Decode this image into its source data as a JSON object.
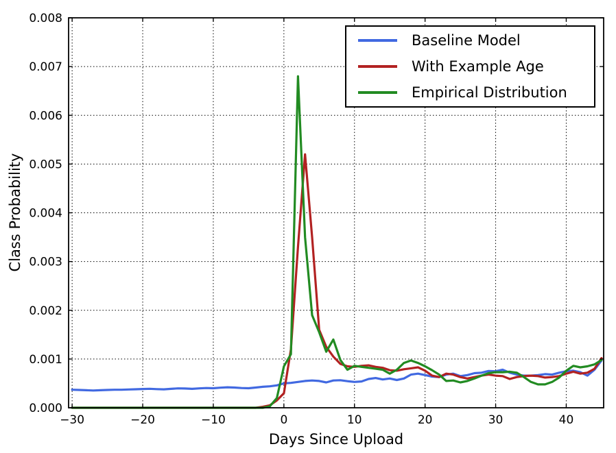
{
  "figure": {
    "background": "#ffffff",
    "axes_color": "#000000",
    "grid_style": "dotted"
  },
  "chart_data": {
    "type": "line",
    "title": "",
    "xlabel": "Days Since Upload",
    "ylabel": "Class Probability",
    "xlim": [
      -30.5,
      45.3
    ],
    "ylim": [
      0.0,
      0.008
    ],
    "grid": "dotted black at all major ticks, both axes",
    "legend": {
      "position": "upper right",
      "border_color": "#000000",
      "background": "#ffffff"
    },
    "xticks": {
      "values": [
        -30,
        -20,
        -10,
        0,
        10,
        20,
        30,
        40
      ],
      "labels": [
        "−30",
        "−20",
        "−10",
        "0",
        "10",
        "20",
        "30",
        "40"
      ]
    },
    "yticks": {
      "values": [
        0.0,
        0.001,
        0.002,
        0.003,
        0.004,
        0.005,
        0.006,
        0.007,
        0.008
      ],
      "labels": [
        "0.000",
        "0.001",
        "0.002",
        "0.003",
        "0.004",
        "0.005",
        "0.006",
        "0.007",
        "0.008"
      ]
    },
    "x": [
      -30,
      -29,
      -28,
      -27,
      -26,
      -25,
      -24,
      -23,
      -22,
      -21,
      -20,
      -19,
      -18,
      -17,
      -16,
      -15,
      -14,
      -13,
      -12,
      -11,
      -10,
      -9,
      -8,
      -7,
      -6,
      -5,
      -4,
      -3,
      -2,
      -1,
      0,
      1,
      2,
      3,
      4,
      5,
      6,
      7,
      8,
      9,
      10,
      11,
      12,
      13,
      14,
      15,
      16,
      17,
      18,
      19,
      20,
      21,
      22,
      23,
      24,
      25,
      26,
      27,
      28,
      29,
      30,
      31,
      32,
      33,
      34,
      35,
      36,
      37,
      38,
      39,
      40,
      41,
      42,
      43,
      44,
      45
    ],
    "series": [
      {
        "name": "Baseline Model",
        "color": "#4169E1",
        "values": [
          0.00037,
          0.000365,
          0.00036,
          0.000355,
          0.00036,
          0.000365,
          0.00037,
          0.00037,
          0.000375,
          0.00038,
          0.000385,
          0.00039,
          0.000382,
          0.000378,
          0.000388,
          0.000398,
          0.000395,
          0.000388,
          0.000398,
          0.000405,
          0.0004,
          0.000412,
          0.00042,
          0.000415,
          0.000405,
          0.0004,
          0.000415,
          0.00043,
          0.00044,
          0.00046,
          0.0005,
          0.00051,
          0.00053,
          0.00055,
          0.00056,
          0.00055,
          0.00052,
          0.00056,
          0.000565,
          0.000545,
          0.00053,
          0.00054,
          0.00059,
          0.00061,
          0.00058,
          0.0006,
          0.00057,
          0.0006,
          0.00068,
          0.0007,
          0.00067,
          0.00064,
          0.00063,
          0.00068,
          0.0007,
          0.00065,
          0.00067,
          0.00071,
          0.00072,
          0.000755,
          0.00075,
          0.00078,
          0.00072,
          0.00068,
          0.00066,
          0.00066,
          0.00067,
          0.00069,
          0.00068,
          0.00072,
          0.00075,
          0.00076,
          0.00073,
          0.00066,
          0.00078,
          0.00097
        ]
      },
      {
        "name": "With Example Age",
        "color": "#B22222",
        "values": [
          0,
          0,
          0,
          0,
          0,
          0,
          0,
          0,
          0,
          0,
          0,
          0,
          0,
          0,
          0,
          0,
          0,
          0,
          0,
          0,
          0,
          0,
          0,
          0,
          0,
          0,
          0,
          2e-05,
          5e-05,
          0.00015,
          0.0003,
          0.0012,
          0.0033,
          0.0052,
          0.0035,
          0.0016,
          0.00125,
          0.00105,
          0.0009,
          0.00085,
          0.00084,
          0.00086,
          0.00087,
          0.00084,
          0.00082,
          0.00077,
          0.00076,
          0.00079,
          0.00081,
          0.00083,
          0.00076,
          0.00066,
          0.00063,
          0.0007,
          0.00068,
          0.00063,
          0.0006,
          0.00063,
          0.00066,
          0.00068,
          0.00066,
          0.00065,
          0.00059,
          0.00063,
          0.00065,
          0.00066,
          0.00065,
          0.00062,
          0.00063,
          0.00065,
          0.0007,
          0.00074,
          0.0007,
          0.00072,
          0.0008,
          0.00102
        ]
      },
      {
        "name": "Empirical Distribution",
        "color": "#228B22",
        "values": [
          0,
          0,
          0,
          0,
          0,
          0,
          0,
          0,
          0,
          0,
          0,
          0,
          0,
          0,
          0,
          0,
          0,
          0,
          0,
          0,
          0,
          0,
          0,
          0,
          0,
          0,
          0,
          0,
          3e-05,
          0.0002,
          0.00085,
          0.0011,
          0.0068,
          0.0035,
          0.0019,
          0.00155,
          0.00115,
          0.0014,
          0.00098,
          0.00078,
          0.00086,
          0.00084,
          0.00082,
          0.0008,
          0.00078,
          0.0007,
          0.00078,
          0.00092,
          0.00097,
          0.00092,
          0.00085,
          0.00077,
          0.00068,
          0.00055,
          0.00056,
          0.00052,
          0.00055,
          0.0006,
          0.00066,
          0.00071,
          0.00073,
          0.00073,
          0.00074,
          0.00072,
          0.00063,
          0.00053,
          0.00048,
          0.00048,
          0.00053,
          0.00062,
          0.00076,
          0.00086,
          0.00083,
          0.00085,
          0.00089,
          0.00098
        ]
      }
    ]
  }
}
